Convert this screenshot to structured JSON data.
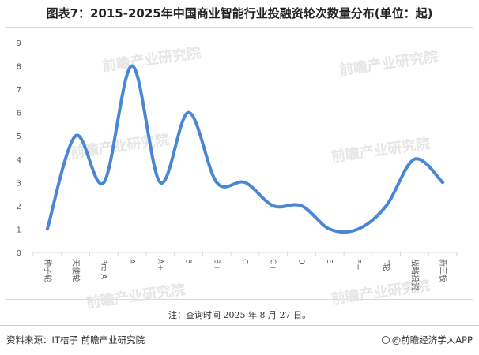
{
  "title": "图表7：2015-2025年中国商业智能行业投融资轮次数量分布(单位：起)",
  "note": "注：查询时间 2025 年 8 月 27 日。",
  "source": "资料来源：IT桔子 前瞻产业研究院",
  "brand": "@前瞻经济学人APP",
  "watermark": "前瞻产业研究院",
  "colors": {
    "line": "#4a86d4"
  },
  "chart_data": {
    "type": "line",
    "smooth": true,
    "categories": [
      "种子轮",
      "天使轮",
      "Pre-A",
      "A",
      "A+",
      "B",
      "B+",
      "C",
      "C+",
      "D",
      "E",
      "E+",
      "F轮",
      "战略投资",
      "新三板"
    ],
    "values": [
      1,
      5,
      3,
      8,
      3,
      6,
      3,
      3,
      2,
      2,
      1,
      1,
      2,
      4,
      3
    ],
    "ylim": [
      0,
      9
    ],
    "yticks": [
      "0",
      "1",
      "2",
      "3",
      "4",
      "5",
      "6",
      "7",
      "8",
      "9"
    ],
    "grid": false,
    "legend": "none"
  }
}
